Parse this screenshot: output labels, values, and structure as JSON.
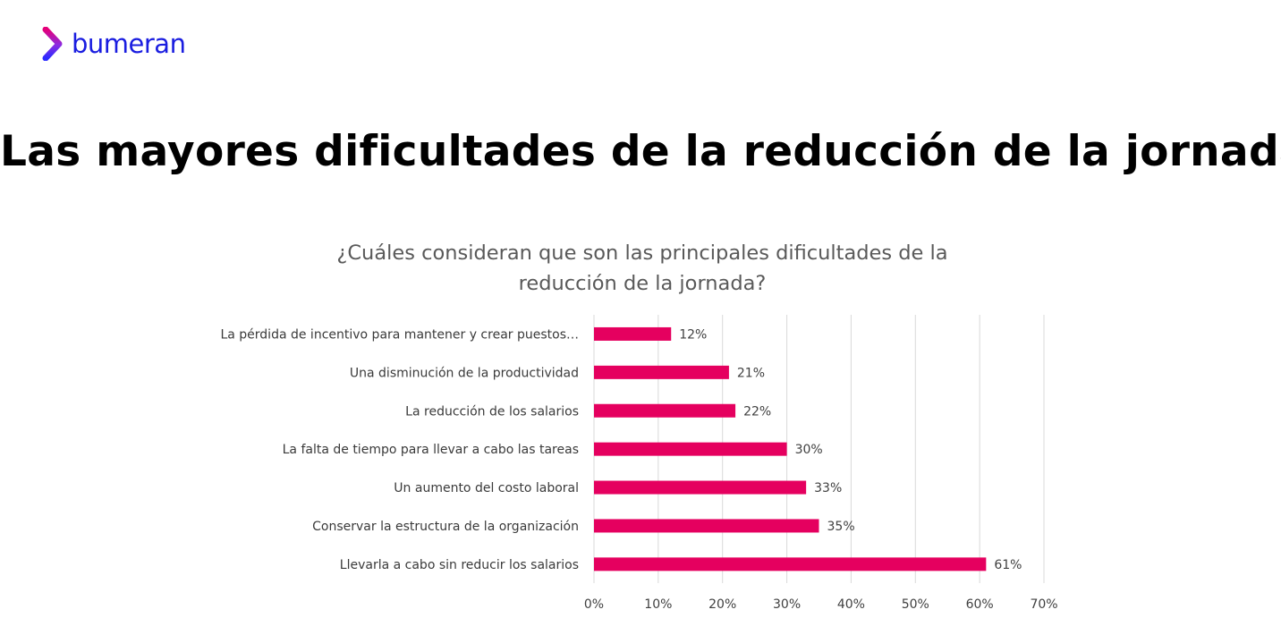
{
  "brand": {
    "name": "bumeran",
    "colors": {
      "logo_text": "#1a1de0",
      "logo_chevron_top": "#e5007a",
      "logo_chevron_bottom": "#2b2bff"
    }
  },
  "page_title": "Las mayores dificultades de la reducción de la jornada",
  "chart_data": {
    "type": "bar",
    "orientation": "horizontal",
    "title_lines": [
      "¿Cuáles consideran que son las principales dificultades de la",
      "reducción de la jornada?"
    ],
    "categories": [
      "La pérdida de incentivo para mantener y crear puestos…",
      "Una disminución de la productividad",
      "La reducción de los salarios",
      "La falta de tiempo para llevar a cabo las tareas",
      "Un aumento del costo laboral",
      "Conservar la estructura de la organización",
      "Llevarla a cabo sin reducir los salarios"
    ],
    "values": [
      12,
      21,
      22,
      30,
      33,
      35,
      61
    ],
    "value_labels": [
      "12%",
      "21%",
      "22%",
      "30%",
      "33%",
      "35%",
      "61%"
    ],
    "xlim": [
      0,
      70
    ],
    "xticks": [
      0,
      10,
      20,
      30,
      40,
      50,
      60,
      70
    ],
    "xtick_labels": [
      "0%",
      "10%",
      "20%",
      "30%",
      "40%",
      "50%",
      "60%",
      "70%"
    ],
    "grid": true,
    "legend": "none",
    "bar_color": "#e5005f"
  }
}
